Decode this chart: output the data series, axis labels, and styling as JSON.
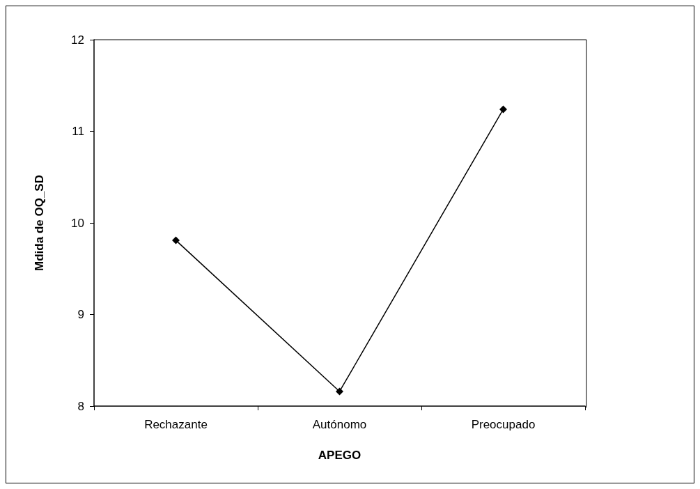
{
  "chart_data": {
    "type": "line",
    "xlabel": "APEGO",
    "ylabel": "Mdida de OQ_SD",
    "categories": [
      "Rechazante",
      "Autónomo",
      "Preocupado"
    ],
    "series": [
      {
        "color": "#000000",
        "values": [
          9.81,
          8.16,
          11.24
        ]
      }
    ],
    "ylim": [
      8,
      12
    ],
    "yticks": [
      8,
      9,
      10,
      11,
      12
    ],
    "grid": false,
    "marker": "diamond",
    "line_style": "solid"
  }
}
